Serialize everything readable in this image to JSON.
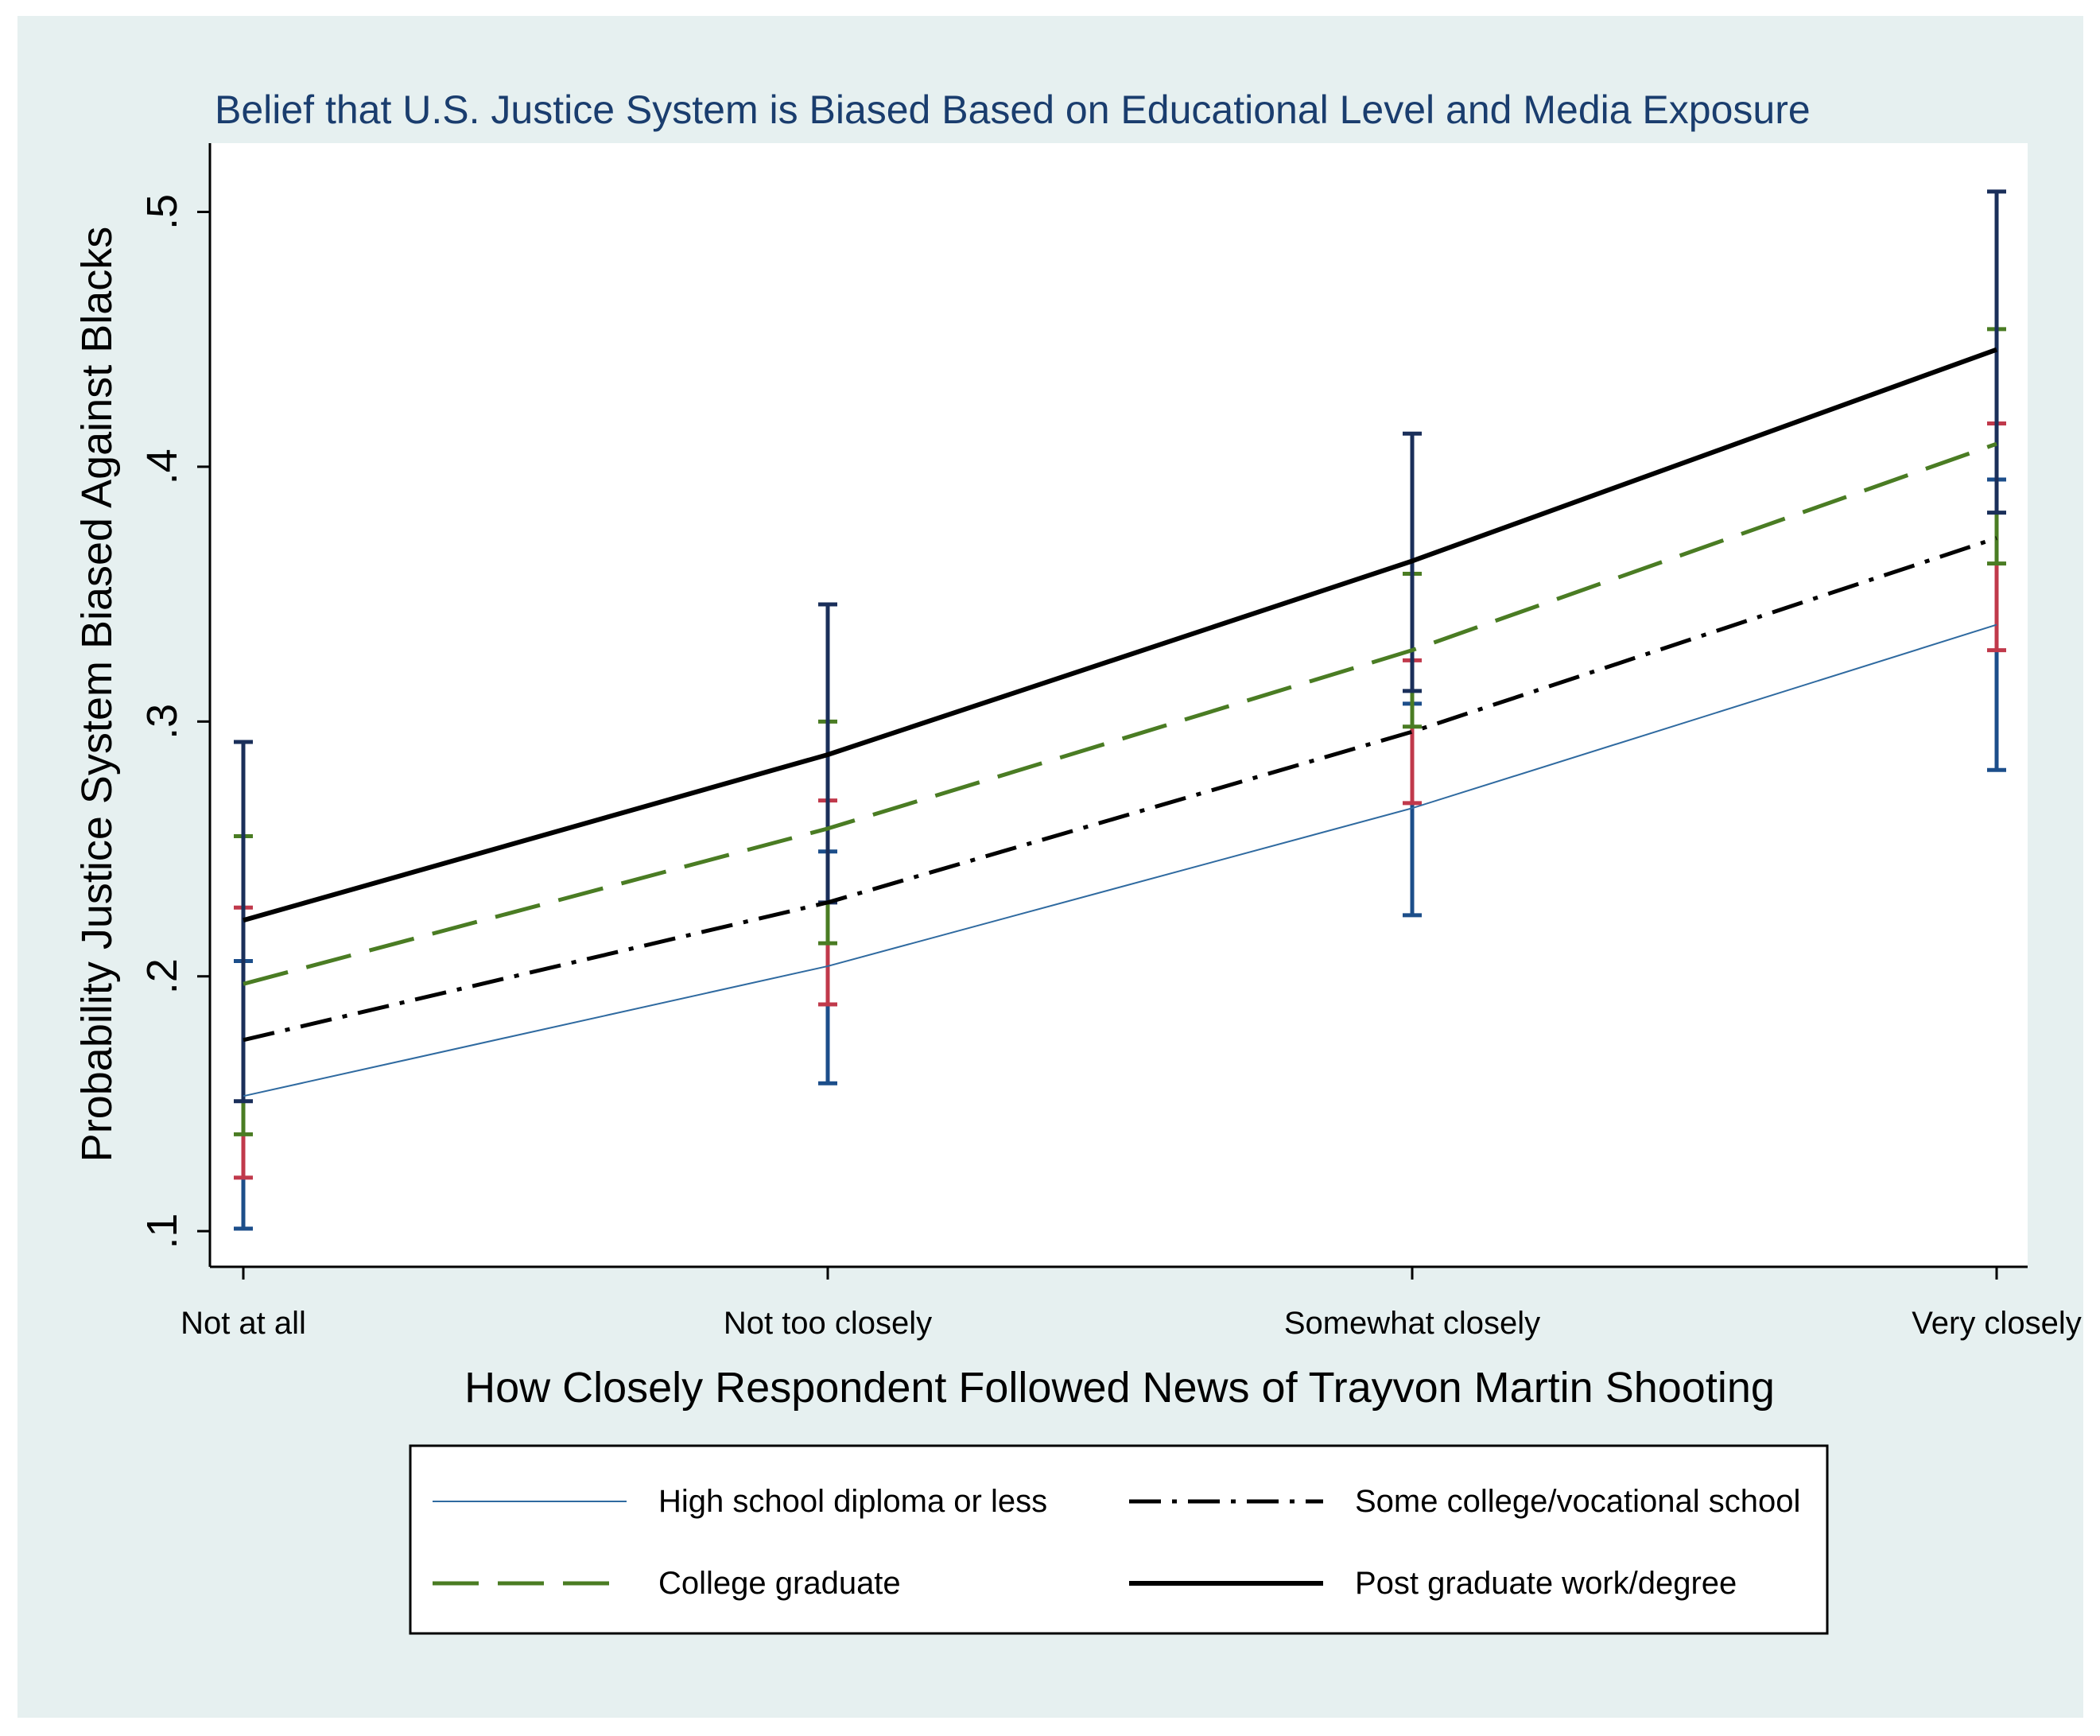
{
  "chart_data": {
    "type": "line",
    "title": "Belief that U.S. Justice System is Biased Based on Educational Level and Media Exposure",
    "xlabel": "How Closely Respondent Followed News of Trayvon Martin Shooting",
    "ylabel": "Probability Justice System Biased Against Blacks",
    "categories": [
      "Not at all",
      "Not too closely",
      "Somewhat closely",
      "Very closely"
    ],
    "ylim": [
      0.086,
      0.527
    ],
    "yticks": [
      0.1,
      0.2,
      0.3,
      0.4,
      0.5
    ],
    "ytick_labels": [
      ".1",
      ".2",
      ".3",
      ".4",
      ".5"
    ],
    "grid": false,
    "legend_position": "bottom",
    "series": [
      {
        "name": "High school diploma or less",
        "color": "#2f6aa0",
        "values": [
          0.153,
          0.204,
          0.266,
          0.338
        ],
        "ci_low": [
          0.101,
          0.158,
          0.224,
          0.281
        ],
        "ci_high": [
          0.206,
          0.249,
          0.307,
          0.395
        ],
        "error_bar_color": "#1c4e8a"
      },
      {
        "name": "Some college/vocational school",
        "color": "#000000",
        "values": [
          0.175,
          0.229,
          0.296,
          0.372
        ],
        "ci_low": [
          0.121,
          0.189,
          0.268,
          0.328
        ],
        "ci_high": [
          0.227,
          0.269,
          0.324,
          0.417
        ],
        "error_bar_color": "#c0394b"
      },
      {
        "name": "College graduate",
        "color": "#4a7c23",
        "values": [
          0.197,
          0.258,
          0.328,
          0.409
        ],
        "ci_low": [
          0.138,
          0.213,
          0.298,
          0.362
        ],
        "ci_high": [
          0.255,
          0.3,
          0.358,
          0.454
        ],
        "error_bar_color": "#4a7c23"
      },
      {
        "name": "Post graduate work/degree",
        "color": "#000000",
        "values": [
          0.222,
          0.287,
          0.363,
          0.446
        ],
        "ci_low": [
          0.151,
          0.229,
          0.312,
          0.382
        ],
        "ci_high": [
          0.292,
          0.346,
          0.413,
          0.508
        ],
        "error_bar_color": "#1a2f5a"
      }
    ]
  },
  "colors": {
    "outer_background": "#e6f0f0",
    "plot_background": "#ffffff",
    "title_color": "#1a3d6e"
  },
  "legend": {
    "items": [
      {
        "label": "High school diploma or less",
        "style": "thin-solid"
      },
      {
        "label": "Some college/vocational school",
        "style": "dash-dot"
      },
      {
        "label": "College graduate",
        "style": "long-dash"
      },
      {
        "label": "Post graduate work/degree",
        "style": "thick-solid"
      }
    ]
  }
}
